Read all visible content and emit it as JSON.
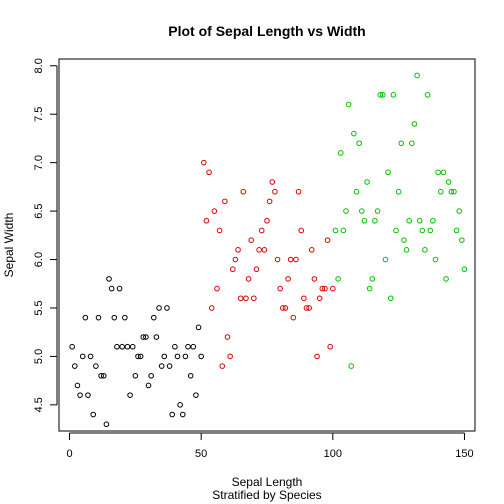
{
  "chart_data": {
    "type": "scatter",
    "title": "Plot of Sepal Length vs Width",
    "xlabel": "Sepal Length",
    "subtitle": "Stratified by Species",
    "ylabel": "Sepal Width",
    "xlim": [
      -4,
      154
    ],
    "ylim": [
      4.23,
      8.07
    ],
    "x_ticks": [
      0,
      50,
      100,
      150
    ],
    "y_ticks": [
      4.5,
      5.0,
      5.5,
      6.0,
      6.5,
      7.0,
      7.5,
      8.0
    ],
    "x_tick_labels": [
      "0",
      "50",
      "100",
      "150"
    ],
    "y_tick_labels": [
      "4.5",
      "5.0",
      "5.5",
      "6.0",
      "6.5",
      "7.0",
      "7.5",
      "8.0"
    ],
    "grid": false,
    "series": [
      {
        "color": "#000000",
        "x": [
          1,
          2,
          3,
          4,
          5,
          6,
          7,
          8,
          9,
          10,
          11,
          12,
          13,
          14,
          15,
          16,
          17,
          18,
          19,
          20,
          21,
          22,
          23,
          24,
          25,
          26,
          27,
          28,
          29,
          30,
          31,
          32,
          33,
          34,
          35,
          36,
          37,
          38,
          39,
          40,
          41,
          42,
          43,
          44,
          45,
          46,
          47,
          48,
          49,
          50
        ],
        "y": [
          5.1,
          4.9,
          4.7,
          4.6,
          5.0,
          5.4,
          4.6,
          5.0,
          4.4,
          4.9,
          5.4,
          4.8,
          4.8,
          4.3,
          5.8,
          5.7,
          5.4,
          5.1,
          5.7,
          5.1,
          5.4,
          5.1,
          4.6,
          5.1,
          4.8,
          5.0,
          5.0,
          5.2,
          5.2,
          4.7,
          4.8,
          5.4,
          5.2,
          5.5,
          4.9,
          5.0,
          5.5,
          4.9,
          4.4,
          5.1,
          5.0,
          4.5,
          4.4,
          5.0,
          5.1,
          4.8,
          5.1,
          4.6,
          5.3,
          5.0
        ]
      },
      {
        "color": "#df0000",
        "x": [
          51,
          52,
          53,
          54,
          55,
          56,
          57,
          58,
          59,
          60,
          61,
          62,
          63,
          64,
          65,
          66,
          67,
          68,
          69,
          70,
          71,
          72,
          73,
          74,
          75,
          76,
          77,
          78,
          79,
          80,
          81,
          82,
          83,
          84,
          85,
          86,
          87,
          88,
          89,
          90,
          91,
          92,
          93,
          94,
          95,
          96,
          97,
          98,
          99,
          100
        ],
        "y": [
          7.0,
          6.4,
          6.9,
          5.5,
          6.5,
          5.7,
          6.3,
          4.9,
          6.6,
          5.2,
          5.0,
          5.9,
          6.0,
          6.1,
          5.6,
          6.7,
          5.6,
          5.8,
          6.2,
          5.6,
          5.9,
          6.1,
          6.3,
          6.1,
          6.4,
          6.6,
          6.8,
          6.7,
          6.0,
          5.7,
          5.5,
          5.5,
          5.8,
          6.0,
          5.4,
          6.0,
          6.7,
          6.3,
          5.6,
          5.5,
          5.5,
          6.1,
          5.8,
          5.0,
          5.6,
          5.7,
          5.7,
          6.2,
          5.1,
          5.7
        ]
      },
      {
        "color": "#00c000",
        "x": [
          101,
          102,
          103,
          104,
          105,
          106,
          107,
          108,
          109,
          110,
          111,
          112,
          113,
          114,
          115,
          116,
          117,
          118,
          119,
          120,
          121,
          122,
          123,
          124,
          125,
          126,
          127,
          128,
          129,
          130,
          131,
          132,
          133,
          134,
          135,
          136,
          137,
          138,
          139,
          140,
          141,
          142,
          143,
          144,
          145,
          146,
          147,
          148,
          149,
          150
        ],
        "y": [
          6.3,
          5.8,
          7.1,
          6.3,
          6.5,
          7.6,
          4.9,
          7.3,
          6.7,
          7.2,
          6.5,
          6.4,
          6.8,
          5.7,
          5.8,
          6.4,
          6.5,
          7.7,
          7.7,
          6.0,
          6.9,
          5.6,
          7.7,
          6.3,
          6.7,
          7.2,
          6.2,
          6.1,
          6.4,
          7.2,
          7.4,
          7.9,
          6.4,
          6.3,
          6.1,
          7.7,
          6.3,
          6.4,
          6.0,
          6.9,
          6.7,
          6.9,
          5.8,
          6.8,
          6.7,
          6.7,
          6.3,
          6.5,
          6.2,
          5.9
        ]
      }
    ]
  }
}
